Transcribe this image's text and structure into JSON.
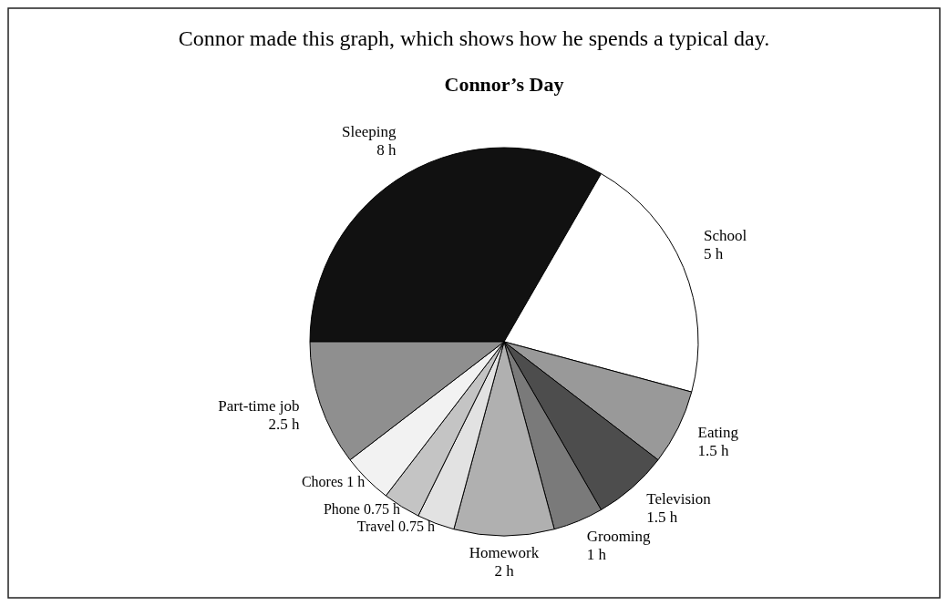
{
  "chart_data": {
    "type": "pie",
    "title": "Connor’s Day",
    "annotations": [
      "Connor made this graph, which shows how he spends a typical day."
    ],
    "categories": [
      "Sleeping",
      "School",
      "Eating",
      "Television",
      "Grooming",
      "Homework",
      "Travel",
      "Phone",
      "Chores",
      "Part-time job"
    ],
    "values": [
      8,
      5,
      1.5,
      1.5,
      1,
      2,
      0.75,
      0.75,
      1,
      2.5
    ],
    "value_labels": [
      "8 h",
      "5 h",
      "1.5 h",
      "1.5 h",
      "1 h",
      "2 h",
      "0.75 h",
      "0.75 h",
      "1 h",
      "2.5 h"
    ],
    "colors": [
      "#111111",
      "#ffffff",
      "#999999",
      "#4d4d4d",
      "#7a7a7a",
      "#b0b0b0",
      "#e2e2e2",
      "#c4c4c4",
      "#f2f2f2",
      "#8f8f8f"
    ]
  }
}
